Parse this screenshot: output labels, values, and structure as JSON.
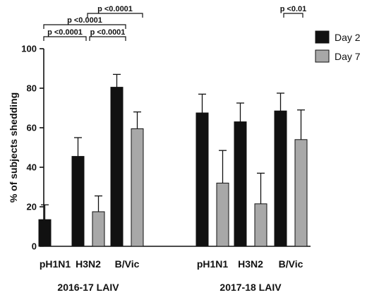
{
  "chart_data": {
    "type": "bar",
    "title": "",
    "ylabel": "% of subjects shedding",
    "ylim": [
      0,
      100
    ],
    "yticks": [
      0,
      20,
      40,
      60,
      80,
      100
    ],
    "legend": {
      "position": "top-right"
    },
    "colors": {
      "Day 2": "#111111",
      "Day 7": "#a8a8a8"
    },
    "groups": [
      {
        "name": "2016-17 LAIV",
        "categories": [
          "pH1N1",
          "H3N2",
          "B/Vic"
        ],
        "series": [
          {
            "name": "Day 2",
            "values": [
              13.5,
              45.5,
              80.5
            ],
            "error": [
              7.5,
              9.5,
              6.5
            ]
          },
          {
            "name": "Day 7",
            "values": [
              0,
              17.5,
              59.5
            ],
            "error": [
              0,
              8.0,
              8.5
            ]
          }
        ]
      },
      {
        "name": "2017-18 LAIV",
        "categories": [
          "pH1N1",
          "H3N2",
          "B/Vic"
        ],
        "series": [
          {
            "name": "Day 2",
            "values": [
              67.5,
              63.0,
              68.5
            ],
            "error": [
              9.5,
              9.5,
              9.0
            ]
          },
          {
            "name": "Day 7",
            "values": [
              32.0,
              21.5,
              54.0
            ],
            "error": [
              16.5,
              15.5,
              15.0
            ]
          }
        ]
      }
    ],
    "annotations": [
      {
        "text": "p <0.0001",
        "group": 0,
        "from": [
          0,
          "Day 2"
        ],
        "to": [
          2,
          "Day 2"
        ],
        "level": 1
      },
      {
        "text": "p <0.0001",
        "group": 0,
        "from": [
          1,
          "Day 2"
        ],
        "to": [
          2,
          "Day 7"
        ],
        "level": 2
      },
      {
        "text": "p <0.0001",
        "group": 0,
        "from": [
          0,
          "Day 2"
        ],
        "to": [
          1,
          "Day 2"
        ],
        "level": 0
      },
      {
        "text": "p <0.0001",
        "group": 0,
        "from": [
          1,
          "Day 2"
        ],
        "to": [
          2,
          "Day 2"
        ],
        "level": 0
      },
      {
        "text": "p <0.01",
        "group": 1,
        "from": [
          2,
          "Day 2"
        ],
        "to": [
          2,
          "Day 7"
        ],
        "level": 2
      }
    ]
  }
}
